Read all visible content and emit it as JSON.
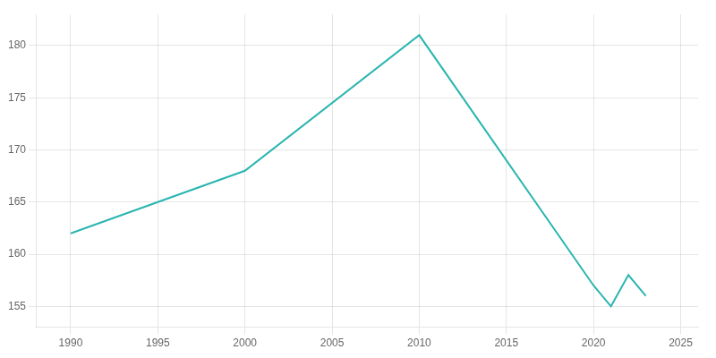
{
  "chart_data": {
    "type": "line",
    "x": [
      1990,
      2000,
      2010,
      2020,
      2021,
      2022,
      2023
    ],
    "values": [
      162,
      168,
      181,
      157,
      155,
      158,
      156
    ],
    "color": "#2ab5b0",
    "xlim": [
      1988,
      2026
    ],
    "xticks": [
      1990,
      1995,
      2000,
      2005,
      2010,
      2015,
      2020,
      2025
    ],
    "ylim": [
      153,
      183
    ],
    "yticks": [
      155,
      160,
      165,
      170,
      175,
      180
    ],
    "grid": true
  }
}
